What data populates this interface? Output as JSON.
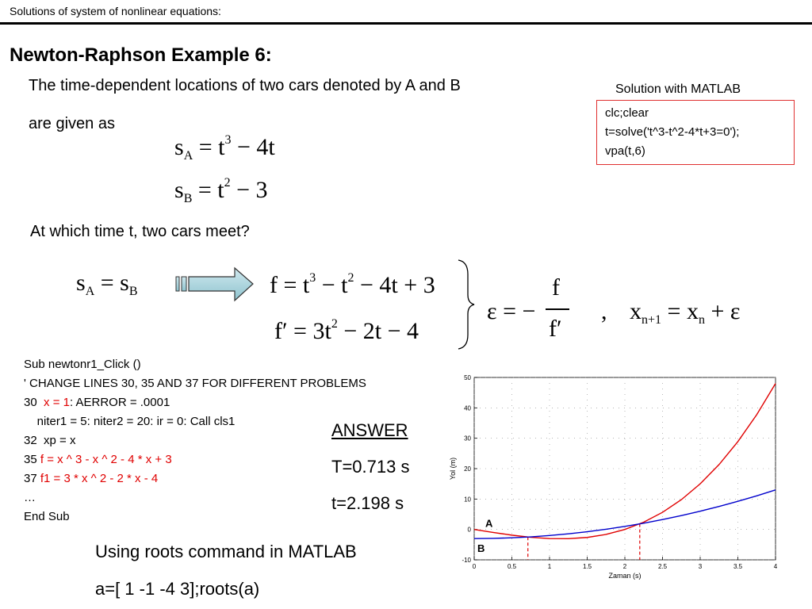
{
  "header": {
    "text": "Solutions of system of nonlinear equations:"
  },
  "title": "Newton-Raphson Example 6:",
  "intro": {
    "line1": "The time-dependent locations of two cars denoted by A and B",
    "line2": "are given as",
    "question": "At which time t, two cars meet?"
  },
  "equations": {
    "sa": {
      "lhs": "s",
      "sub": "A",
      "eq": "= t",
      "exp": "3",
      "rest": "− 4t"
    },
    "sb": {
      "lhs": "s",
      "sub": "B",
      "eq": "= t",
      "exp": "2",
      "rest": "− 3"
    },
    "equal": {
      "s1": "s",
      "sub1": "A",
      "eq": "= s",
      "sub2": "B"
    },
    "f": {
      "a": "f = t",
      "e1": "3",
      "b": "− t",
      "e2": "2",
      "c": "− 4t + 3"
    },
    "fprime": {
      "a": "f′ = 3t",
      "e1": "2",
      "c": "− 2t − 4"
    },
    "eps": {
      "lhs": "ε = −",
      "num": "f",
      "den": "f′"
    },
    "comma": ",",
    "iter": {
      "a": "x",
      "sub1": "n+1",
      "b": "= x",
      "sub2": "n",
      "c": "+ ε"
    }
  },
  "matlab": {
    "label": "Solution with MATLAB",
    "lines": [
      "clc;clear",
      "t=solve('t^3-t^2-4*t+3=0');",
      "vpa(t,6)"
    ]
  },
  "code": {
    "l1": "Sub newtonr1_Click ()",
    "l2": "' CHANGE LINES 30, 35 AND 37 FOR DIFFERENT PROBLEMS",
    "l3a": "30  ",
    "l3b": "x = 1",
    "l3c": ": AERROR = .0001",
    "l4": "    niter1 = 5: niter2 = 20: ir = 0: Call cls1",
    "l5": "32  xp = x",
    "l6a": "35 ",
    "l6b": "f = x ^ 3 - x ^ 2 - 4 * x + 3",
    "l7a": "37 ",
    "l7b": "f1 = 3 * x ^ 2 - 2 * x - 4",
    "l8": "…",
    "l9": "End Sub"
  },
  "answer": {
    "label": "ANSWER",
    "t1": "T=0.713 s",
    "t2": "t=2.198 s"
  },
  "bottom": {
    "line1": "Using roots command in MATLAB",
    "line2": "a=[ 1 -1 -4 3];roots(a)"
  },
  "chart_data": {
    "type": "line",
    "xlabel": "Zaman (s)",
    "ylabel": "Yol (m)",
    "xlim": [
      0,
      4
    ],
    "ylim": [
      -10,
      50
    ],
    "xticks": [
      "0",
      "0.5",
      "1",
      "1.5",
      "2",
      "2.5",
      "3",
      "3.5",
      "4"
    ],
    "yticks": [
      "-10",
      "0",
      "10",
      "20",
      "30",
      "40",
      "50"
    ],
    "series": [
      {
        "name": "A",
        "color": "#e00000",
        "x": [
          0,
          0.25,
          0.5,
          0.75,
          1,
          1.25,
          1.5,
          1.75,
          2,
          2.25,
          2.5,
          2.75,
          3,
          3.25,
          3.5,
          3.75,
          4
        ],
        "y": [
          0,
          -0.98,
          -1.88,
          -2.58,
          -3,
          -3.05,
          -2.63,
          -1.64,
          0,
          2.39,
          5.63,
          9.8,
          15,
          21.33,
          28.88,
          37.73,
          48
        ]
      },
      {
        "name": "B",
        "color": "#0000cc",
        "x": [
          0,
          0.25,
          0.5,
          0.75,
          1,
          1.25,
          1.5,
          1.75,
          2,
          2.25,
          2.5,
          2.75,
          3,
          3.25,
          3.5,
          3.75,
          4
        ],
        "y": [
          -3,
          -2.94,
          -2.75,
          -2.44,
          -2,
          -1.44,
          -0.75,
          0.06,
          1,
          2.06,
          3.25,
          4.56,
          6,
          7.56,
          9.25,
          11.06,
          13
        ]
      }
    ],
    "intersections": [
      0.713,
      2.198
    ],
    "labels": [
      "A",
      "B"
    ],
    "grid": "dotted"
  }
}
